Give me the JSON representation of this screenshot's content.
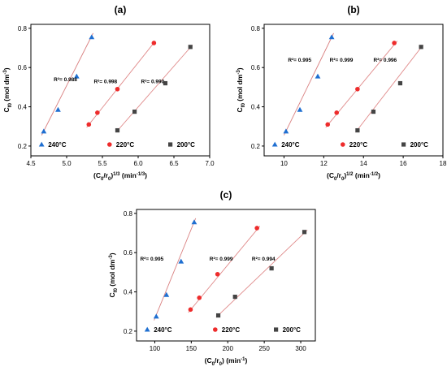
{
  "colors": {
    "240": "#1f6fd1",
    "220": "#ee2c2c",
    "200": "#444444",
    "fit_240": "#d98080",
    "fit_220": "#e08a8a",
    "fit_200": "#e08a8a"
  },
  "chart_data": [
    {
      "type": "scatter",
      "panel_label": "(a)",
      "xlabel": "(C₀/r₀)¹ᐟ³ (min⁻¹ᐟ³)",
      "xlabel_parts": [
        "(C",
        "0",
        "/r",
        "0",
        ")",
        "1/3",
        " (min",
        "-1/3",
        ")"
      ],
      "ylabel": "C₀ (mol dm⁻³)",
      "ylabel_parts": [
        "C",
        "f0",
        " (mol dm",
        "-3",
        ")"
      ],
      "xlim": [
        4.5,
        7.0
      ],
      "ylim": [
        0.15,
        0.82
      ],
      "xticks": [
        4.5,
        5.0,
        5.5,
        6.0,
        6.5,
        7.0
      ],
      "xtick_labels": [
        "4.5",
        "5.0",
        "5.5",
        "6.0",
        "6.5",
        "7.0"
      ],
      "yticks": [
        0.2,
        0.4,
        0.6,
        0.8
      ],
      "ytick_labels": [
        "0.2",
        "0.4",
        "0.6",
        "0.8"
      ],
      "series": [
        {
          "name": "240°C",
          "marker": "triangle",
          "color_key": "240",
          "fit_color_key": "fit_240",
          "r2": "R²= 0.988",
          "r2_at": [
            4.82,
            0.53
          ],
          "x": [
            4.68,
            4.88,
            5.14,
            5.35
          ],
          "y": [
            0.275,
            0.385,
            0.555,
            0.755
          ],
          "fit": [
            [
              4.65,
              0.255
            ],
            [
              5.37,
              0.775
            ]
          ]
        },
        {
          "name": "220°C",
          "marker": "circle",
          "color_key": "220",
          "fit_color_key": "fit_220",
          "r2": "R²= 0.998",
          "r2_at": [
            5.38,
            0.52
          ],
          "x": [
            5.31,
            5.43,
            5.71,
            6.22
          ],
          "y": [
            0.31,
            0.37,
            0.49,
            0.725
          ],
          "fit": [
            [
              5.28,
              0.295
            ],
            [
              6.24,
              0.735
            ]
          ]
        },
        {
          "name": "200°C",
          "marker": "square",
          "color_key": "200",
          "fit_color_key": "fit_200",
          "r2": "R²= 0.990",
          "r2_at": [
            6.04,
            0.52
          ],
          "x": [
            5.71,
            5.95,
            6.38,
            6.73
          ],
          "y": [
            0.28,
            0.375,
            0.52,
            0.705
          ],
          "fit": [
            [
              5.69,
              0.27
            ],
            [
              6.76,
              0.715
            ]
          ]
        }
      ]
    },
    {
      "type": "scatter",
      "panel_label": "(b)",
      "xlabel": "(C₀/r₀)¹ᐟ² (min⁻¹ᐟ²)",
      "xlabel_parts": [
        "(C",
        "0",
        "/r",
        "0",
        ")",
        "1/2",
        " (min",
        "-1/2",
        ")"
      ],
      "ylabel": "C₀ (mol dm⁻³)",
      "ylabel_parts": [
        "C",
        "f0",
        " (mol dm",
        "-3",
        ")"
      ],
      "xlim": [
        9,
        18
      ],
      "ylim": [
        0.15,
        0.82
      ],
      "xticks": [
        10,
        12,
        14,
        16,
        18
      ],
      "xtick_labels": [
        "10",
        "12",
        "14",
        "16",
        "18"
      ],
      "yticks": [
        0.2,
        0.4,
        0.6,
        0.8
      ],
      "ytick_labels": [
        "0.2",
        "0.4",
        "0.6",
        "0.8"
      ],
      "series": [
        {
          "name": "240°C",
          "marker": "triangle",
          "color_key": "240",
          "fit_color_key": "fit_240",
          "r2": "R²= 0.995",
          "r2_at": [
            10.2,
            0.63
          ],
          "x": [
            10.1,
            10.8,
            11.7,
            12.4
          ],
          "y": [
            0.275,
            0.385,
            0.555,
            0.755
          ],
          "fit": [
            [
              10.0,
              0.255
            ],
            [
              12.5,
              0.775
            ]
          ]
        },
        {
          "name": "220°C",
          "marker": "circle",
          "color_key": "220",
          "fit_color_key": "fit_220",
          "r2": "R²= 0.999",
          "r2_at": [
            12.3,
            0.63
          ],
          "x": [
            12.2,
            12.65,
            13.7,
            15.55
          ],
          "y": [
            0.31,
            0.37,
            0.49,
            0.725
          ],
          "fit": [
            [
              12.1,
              0.295
            ],
            [
              15.7,
              0.735
            ]
          ]
        },
        {
          "name": "200°C",
          "marker": "square",
          "color_key": "200",
          "fit_color_key": "fit_200",
          "r2": "R²= 0.996",
          "r2_at": [
            14.5,
            0.63
          ],
          "x": [
            13.7,
            14.5,
            15.85,
            16.9
          ],
          "y": [
            0.28,
            0.375,
            0.52,
            0.705
          ],
          "fit": [
            [
              13.6,
              0.27
            ],
            [
              17.0,
              0.715
            ]
          ]
        }
      ]
    },
    {
      "type": "scatter",
      "panel_label": "(c)",
      "xlabel": "(C₀/r₀) (min⁻¹)",
      "xlabel_parts": [
        "(C",
        "0",
        "/r",
        "0",
        ")",
        "",
        " (min",
        "-1",
        ")"
      ],
      "ylabel": "C₀ (mol dm⁻³)",
      "ylabel_parts": [
        "C",
        "f0",
        " (mol dm",
        "-3",
        ")"
      ],
      "xlim": [
        75,
        320
      ],
      "ylim": [
        0.15,
        0.82
      ],
      "xticks": [
        100,
        150,
        200,
        250,
        300
      ],
      "xtick_labels": [
        "100",
        "150",
        "200",
        "250",
        "300"
      ],
      "yticks": [
        0.2,
        0.4,
        0.6,
        0.8
      ],
      "ytick_labels": [
        "0.2",
        "0.4",
        "0.6",
        "0.8"
      ],
      "series": [
        {
          "name": "240°C",
          "marker": "triangle",
          "color_key": "240",
          "fit_color_key": "fit_240",
          "r2": "R²= 0.995",
          "r2_at": [
            80,
            0.56
          ],
          "x": [
            102,
            116,
            136,
            154
          ],
          "y": [
            0.275,
            0.385,
            0.555,
            0.755
          ],
          "fit": [
            [
              99,
              0.255
            ],
            [
              156,
              0.775
            ]
          ]
        },
        {
          "name": "220°C",
          "marker": "circle",
          "color_key": "220",
          "fit_color_key": "fit_220",
          "r2": "R²= 0.999",
          "r2_at": [
            175,
            0.56
          ],
          "x": [
            149,
            161,
            186,
            240
          ],
          "y": [
            0.31,
            0.37,
            0.49,
            0.725
          ],
          "fit": [
            [
              146,
              0.295
            ],
            [
              244,
              0.735
            ]
          ]
        },
        {
          "name": "200°C",
          "marker": "square",
          "color_key": "200",
          "fit_color_key": "fit_200",
          "r2": "R²= 0.994",
          "r2_at": [
            233,
            0.56
          ],
          "x": [
            187,
            210,
            260,
            305
          ],
          "y": [
            0.28,
            0.375,
            0.52,
            0.705
          ],
          "fit": [
            [
              184,
              0.27
            ],
            [
              309,
              0.715
            ]
          ]
        }
      ]
    }
  ]
}
